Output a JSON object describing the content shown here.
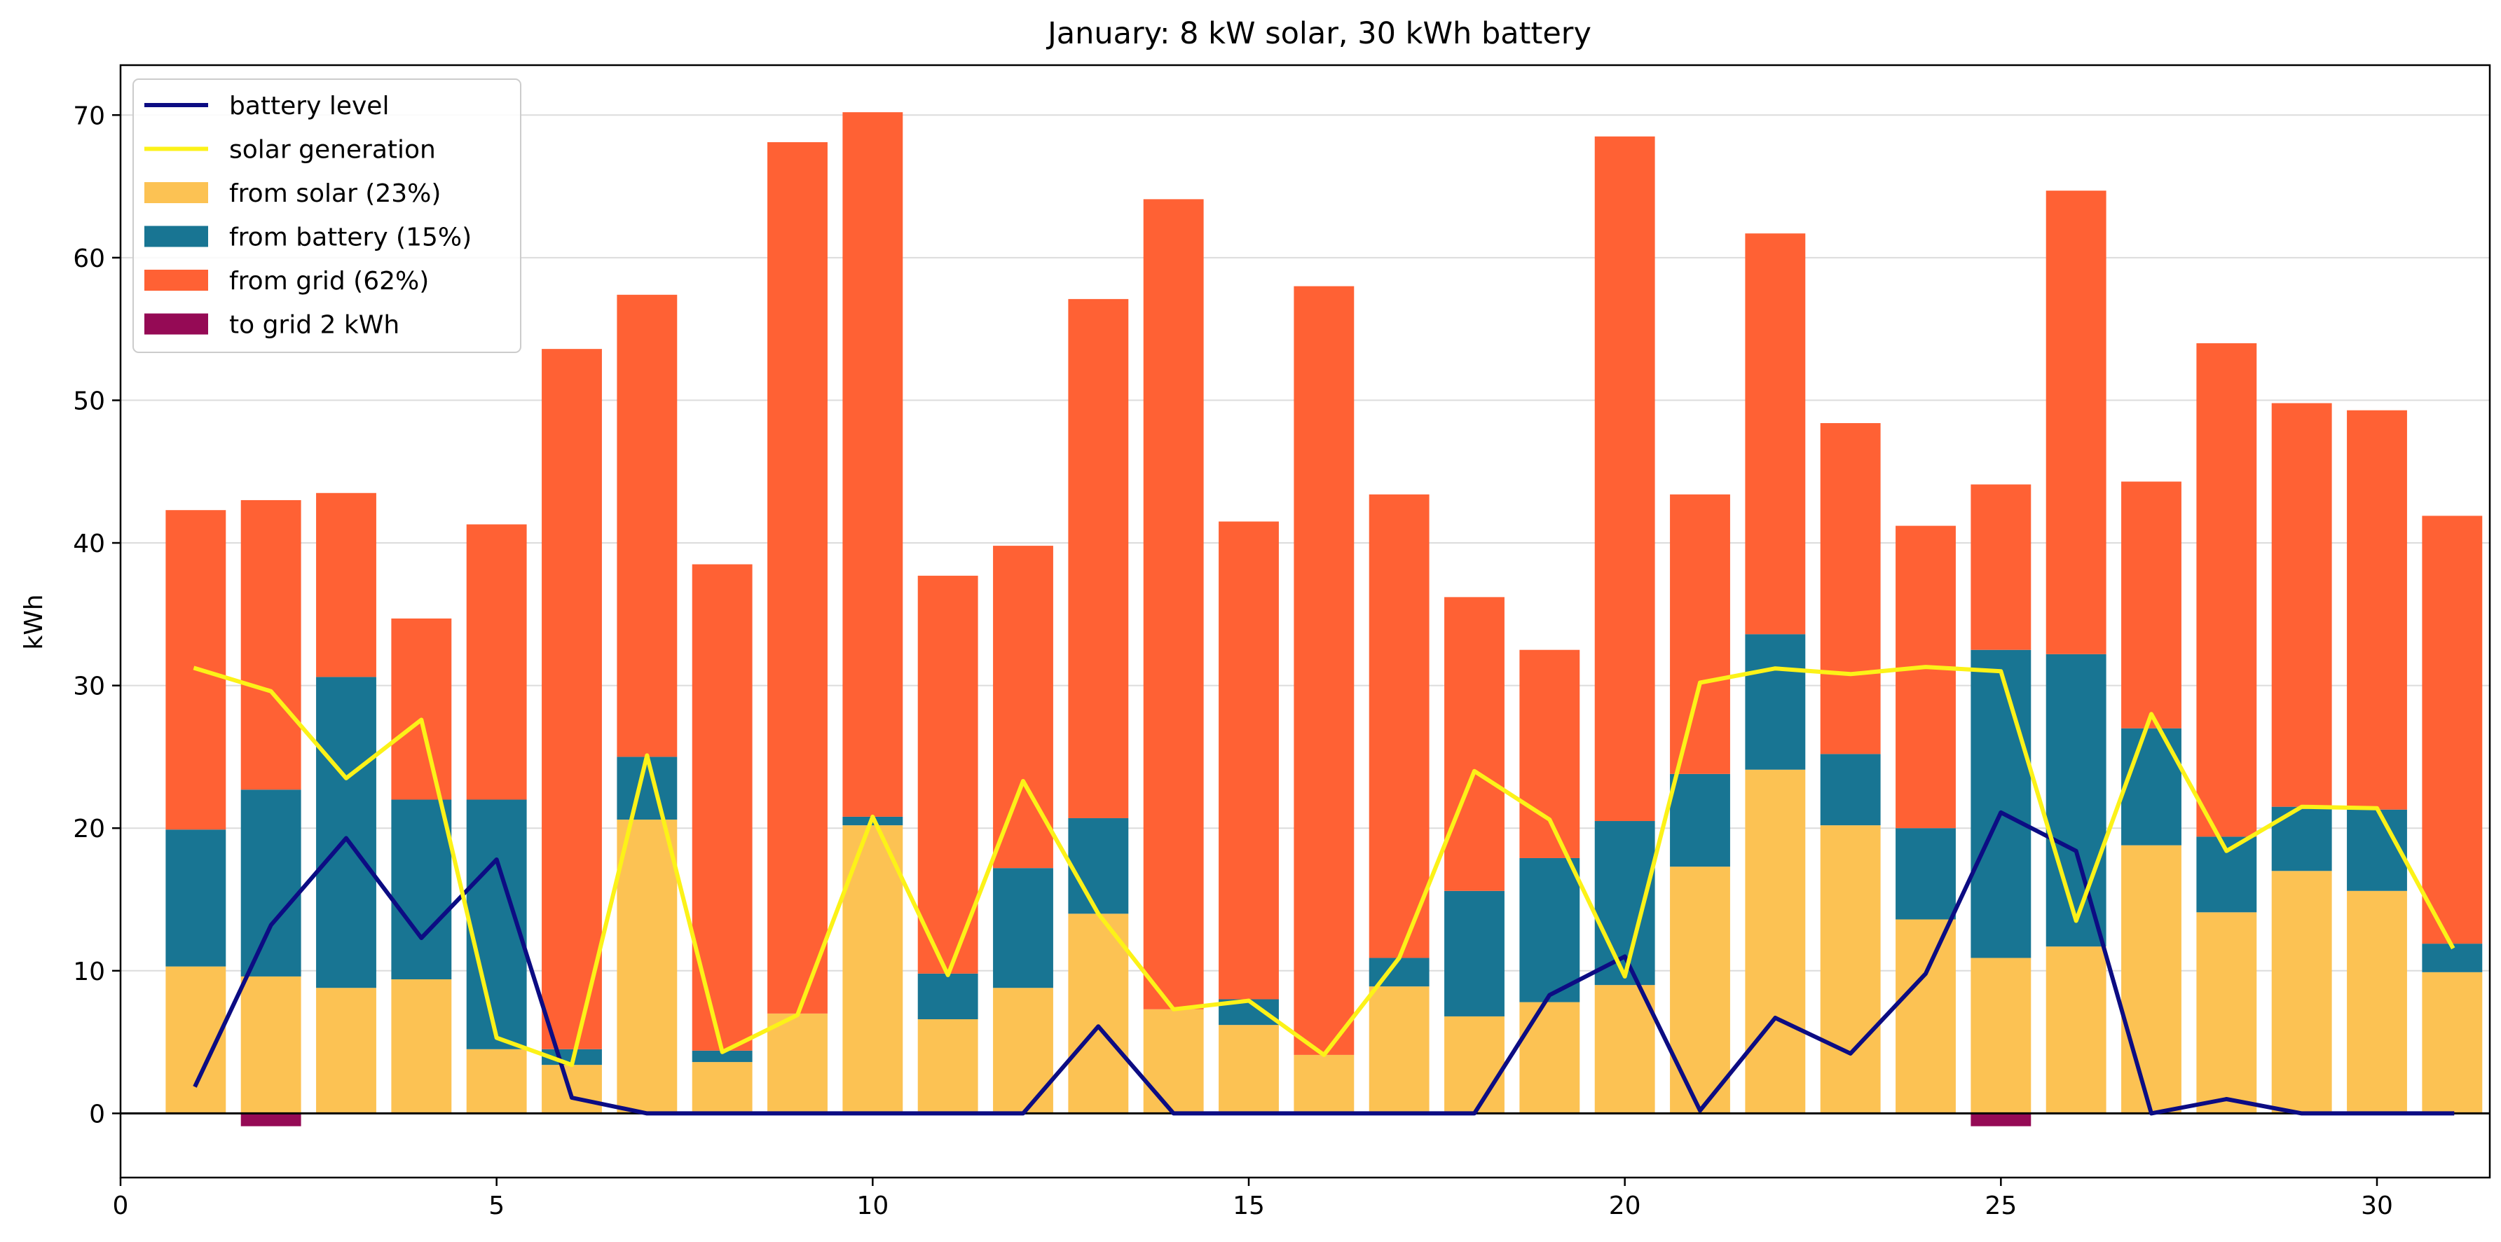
{
  "chart_data": {
    "type": "bar",
    "title": "January: 8 kW solar, 30 kWh battery",
    "xlabel": "",
    "ylabel": "kWh",
    "xlim": [
      0,
      31.5
    ],
    "ylim": [
      -4.5,
      73.5
    ],
    "xticks": [
      0,
      5,
      10,
      15,
      20,
      25,
      30
    ],
    "yticks": [
      0,
      10,
      20,
      30,
      40,
      50,
      60,
      70
    ],
    "grid": "horizontal",
    "legend_position": "upper-left",
    "days": [
      1,
      2,
      3,
      4,
      5,
      6,
      7,
      8,
      9,
      10,
      11,
      12,
      13,
      14,
      15,
      16,
      17,
      18,
      19,
      20,
      21,
      22,
      23,
      24,
      25,
      26,
      27,
      28,
      29,
      30,
      31
    ],
    "series": [
      {
        "name": "from solar (23%)",
        "kind": "bar",
        "color": "#fcc253",
        "values": [
          10.3,
          9.6,
          8.8,
          9.4,
          4.5,
          3.4,
          20.6,
          3.6,
          7.0,
          20.2,
          6.6,
          8.8,
          14.0,
          7.3,
          6.2,
          4.1,
          8.9,
          6.8,
          7.8,
          9.0,
          17.3,
          24.1,
          20.2,
          13.6,
          10.9,
          11.7,
          18.8,
          14.1,
          17.0,
          15.6,
          9.9
        ]
      },
      {
        "name": "from battery (15%)",
        "kind": "bar",
        "color": "#187593",
        "values": [
          9.6,
          13.1,
          21.8,
          12.6,
          17.5,
          1.1,
          4.4,
          0.8,
          0.0,
          0.6,
          3.2,
          8.4,
          6.7,
          0.0,
          1.8,
          0.0,
          2.0,
          8.8,
          10.1,
          11.5,
          6.5,
          9.5,
          5.0,
          6.4,
          21.6,
          20.5,
          8.2,
          5.3,
          4.5,
          5.7,
          2.0
        ]
      },
      {
        "name": "from grid (62%)",
        "kind": "bar",
        "color": "#ff6134",
        "values": [
          22.4,
          20.3,
          12.9,
          12.7,
          19.3,
          49.1,
          32.4,
          34.1,
          61.1,
          49.4,
          27.9,
          22.6,
          36.4,
          56.8,
          33.5,
          53.9,
          32.5,
          20.6,
          14.6,
          48.0,
          19.6,
          28.1,
          23.2,
          21.2,
          11.6,
          32.5,
          17.3,
          34.6,
          28.3,
          28.0,
          30.0
        ]
      },
      {
        "name": "to grid 2 kWh",
        "kind": "bar",
        "color": "#950a55",
        "values": [
          0,
          -0.9,
          0,
          0,
          0,
          0,
          0,
          0,
          0,
          0,
          0,
          0,
          0,
          0,
          0,
          0,
          0,
          0,
          0,
          0,
          0,
          0,
          0,
          0,
          -0.9,
          0,
          0,
          0,
          0,
          0,
          0
        ]
      },
      {
        "name": "battery level",
        "kind": "line",
        "color": "#0c0c83",
        "values": [
          2.0,
          13.2,
          19.3,
          12.3,
          17.8,
          1.1,
          0.0,
          0.0,
          0.0,
          0.0,
          0.0,
          0.0,
          6.1,
          0.0,
          0.0,
          0.0,
          0.0,
          0.0,
          8.3,
          11.0,
          0.2,
          6.7,
          4.2,
          9.8,
          21.1,
          18.4,
          0.0,
          1.0,
          0.0,
          0.0,
          0.0
        ]
      },
      {
        "name": "solar generation",
        "kind": "line",
        "color": "#fcf218",
        "values": [
          31.2,
          29.6,
          23.5,
          27.6,
          5.3,
          3.4,
          25.1,
          4.3,
          6.9,
          20.8,
          9.7,
          23.3,
          14.0,
          7.3,
          7.9,
          4.1,
          10.9,
          24.0,
          20.6,
          9.6,
          30.2,
          31.2,
          30.8,
          31.3,
          31.0,
          13.5,
          28.0,
          18.4,
          21.5,
          21.4,
          11.7
        ]
      }
    ],
    "legend_order": [
      "battery level",
      "solar generation",
      "from solar (23%)",
      "from battery (15%)",
      "from grid (62%)",
      "to grid 2 kWh"
    ]
  }
}
